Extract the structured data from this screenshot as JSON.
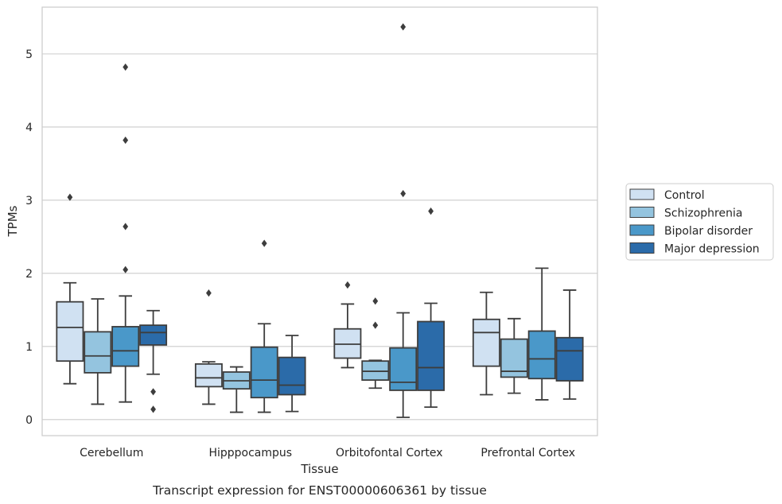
{
  "chart_data": {
    "type": "box",
    "title": "",
    "caption": "Transcript expression for ENST00000606361 by tissue",
    "xlabel": "Tissue",
    "ylabel": "TPMs",
    "ylim": [
      -0.22,
      5.64
    ],
    "yticks": [
      "0",
      "1",
      "2",
      "3",
      "4",
      "5"
    ],
    "grid": "horizontal",
    "legend_placement": "right",
    "categories": [
      "Cerebellum",
      "Hipppocampus",
      "Orbitofontal Cortex",
      "Prefrontal Cortex"
    ],
    "series": [
      {
        "name": "Control",
        "color": "#d0e1f2",
        "boxes": [
          {
            "whislo": 0.49,
            "q1": 0.8,
            "med": 1.26,
            "q3": 1.61,
            "whishi": 1.87,
            "fliers": [
              3.04
            ]
          },
          {
            "whislo": 0.21,
            "q1": 0.45,
            "med": 0.57,
            "q3": 0.76,
            "whishi": 0.79,
            "fliers": [
              1.73
            ]
          },
          {
            "whislo": 0.71,
            "q1": 0.84,
            "med": 1.03,
            "q3": 1.24,
            "whishi": 1.58,
            "fliers": [
              1.84
            ]
          },
          {
            "whislo": 0.34,
            "q1": 0.73,
            "med": 1.19,
            "q3": 1.37,
            "whishi": 1.74,
            "fliers": []
          }
        ]
      },
      {
        "name": "Schizophrenia",
        "color": "#94c4df",
        "boxes": [
          {
            "whislo": 0.21,
            "q1": 0.64,
            "med": 0.87,
            "q3": 1.2,
            "whishi": 1.65,
            "fliers": []
          },
          {
            "whislo": 0.1,
            "q1": 0.42,
            "med": 0.53,
            "q3": 0.65,
            "whishi": 0.72,
            "fliers": []
          },
          {
            "whislo": 0.43,
            "q1": 0.54,
            "med": 0.66,
            "q3": 0.8,
            "whishi": 0.81,
            "fliers": [
              1.29,
              1.62
            ]
          },
          {
            "whislo": 0.36,
            "q1": 0.58,
            "med": 0.66,
            "q3": 1.1,
            "whishi": 1.38,
            "fliers": []
          }
        ]
      },
      {
        "name": "Bipolar disorder",
        "color": "#4a98c9",
        "boxes": [
          {
            "whislo": 0.24,
            "q1": 0.73,
            "med": 0.94,
            "q3": 1.27,
            "whishi": 1.69,
            "fliers": [
              2.05,
              2.64,
              3.82,
              4.82
            ]
          },
          {
            "whislo": 0.1,
            "q1": 0.3,
            "med": 0.54,
            "q3": 0.99,
            "whishi": 1.31,
            "fliers": [
              2.41
            ]
          },
          {
            "whislo": 0.03,
            "q1": 0.4,
            "med": 0.51,
            "q3": 0.98,
            "whishi": 1.46,
            "fliers": [
              3.09,
              5.37
            ]
          },
          {
            "whislo": 0.27,
            "q1": 0.56,
            "med": 0.83,
            "q3": 1.21,
            "whishi": 2.07,
            "fliers": []
          }
        ]
      },
      {
        "name": "Major depression",
        "color": "#2b6ba9",
        "boxes": [
          {
            "whislo": 0.62,
            "q1": 1.02,
            "med": 1.19,
            "q3": 1.29,
            "whishi": 1.49,
            "fliers": [
              0.14,
              0.38
            ]
          },
          {
            "whislo": 0.11,
            "q1": 0.34,
            "med": 0.47,
            "q3": 0.85,
            "whishi": 1.15,
            "fliers": []
          },
          {
            "whislo": 0.17,
            "q1": 0.4,
            "med": 0.71,
            "q3": 1.34,
            "whishi": 1.59,
            "fliers": [
              2.85
            ]
          },
          {
            "whislo": 0.28,
            "q1": 0.53,
            "med": 0.94,
            "q3": 1.12,
            "whishi": 1.77,
            "fliers": []
          }
        ]
      }
    ]
  }
}
